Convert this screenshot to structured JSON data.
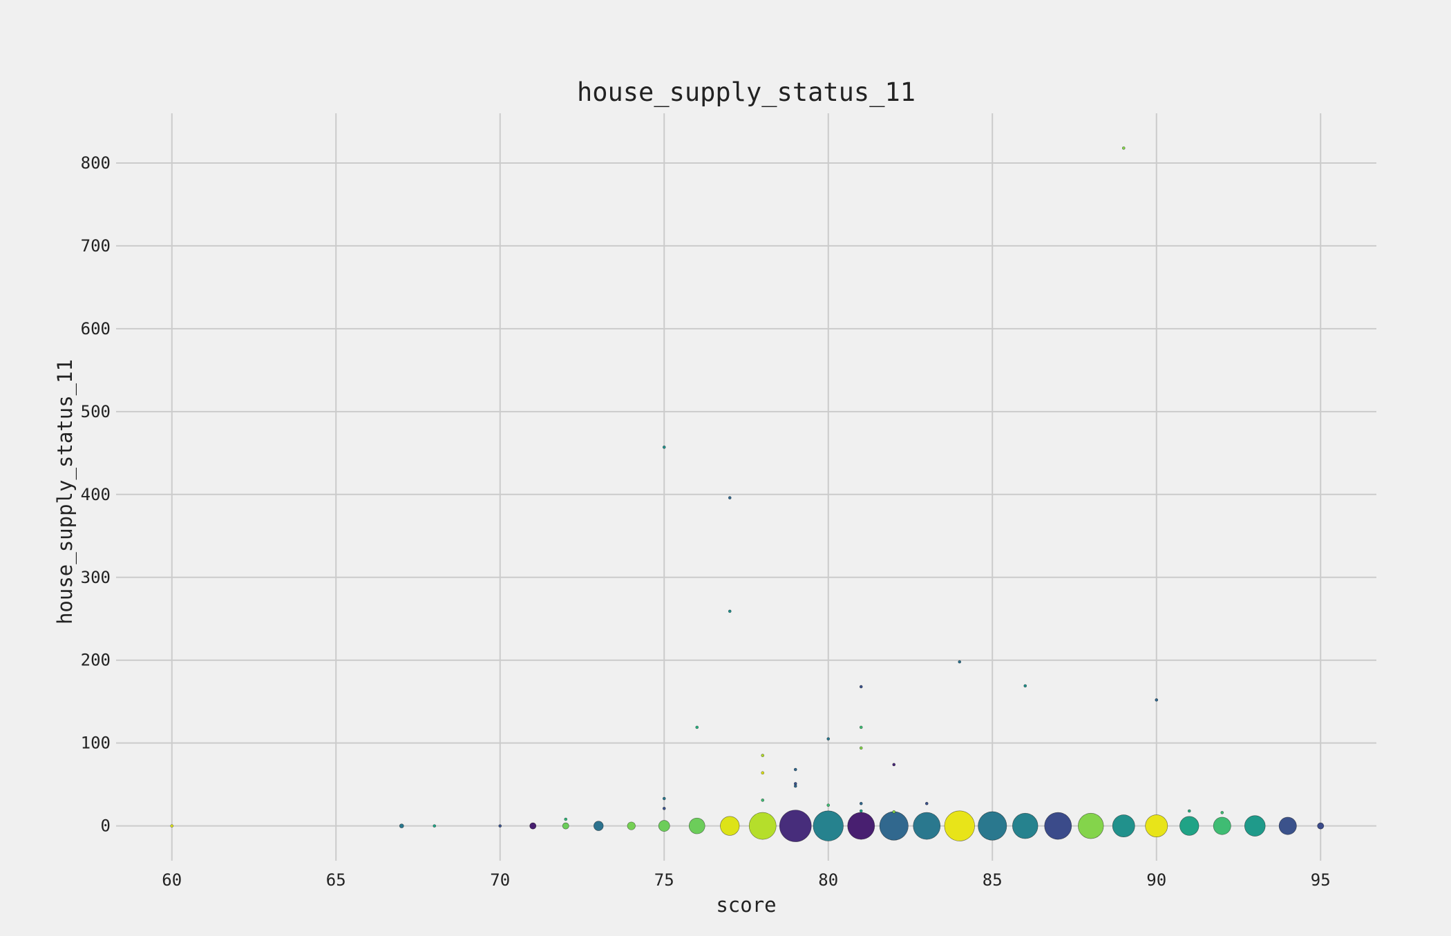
{
  "chart_data": {
    "type": "scatter",
    "title": "house_supply_status_11",
    "xlabel": "score",
    "ylabel": "house_supply_status_11",
    "xlim": [
      58.3,
      96.7
    ],
    "ylim": [
      -42,
      860
    ],
    "xticks": [
      60,
      65,
      70,
      75,
      80,
      85,
      90,
      95
    ],
    "yticks": [
      0,
      100,
      200,
      300,
      400,
      500,
      600,
      700,
      800
    ],
    "grid": true,
    "legend": "none",
    "background": "#f0f0f0",
    "grid_color": "#cbcbcb",
    "colormap": "viridis",
    "size_encoding": "marker area grows with the number of records at each score (zero-value rows)",
    "points": [
      {
        "x": 60,
        "y": 0,
        "size": 1,
        "color": "#dde318"
      },
      {
        "x": 67,
        "y": 0,
        "size": 2,
        "color": "#2a788e"
      },
      {
        "x": 68,
        "y": 0,
        "size": 1,
        "color": "#20a386"
      },
      {
        "x": 70,
        "y": 0,
        "size": 1,
        "color": "#3b528b"
      },
      {
        "x": 71,
        "y": 0,
        "size": 4,
        "color": "#481f70"
      },
      {
        "x": 72,
        "y": 8,
        "size": 1,
        "color": "#32b67a"
      },
      {
        "x": 72,
        "y": 0,
        "size": 4,
        "color": "#6ccd5a"
      },
      {
        "x": 73,
        "y": 0,
        "size": 6,
        "color": "#2c728e"
      },
      {
        "x": 74,
        "y": 0,
        "size": 5,
        "color": "#75d054"
      },
      {
        "x": 75,
        "y": 457,
        "size": 1,
        "color": "#21918c"
      },
      {
        "x": 75,
        "y": 33,
        "size": 1,
        "color": "#2a788e"
      },
      {
        "x": 75,
        "y": 21,
        "size": 1,
        "color": "#3b528b"
      },
      {
        "x": 75,
        "y": 0,
        "size": 7,
        "color": "#6ccd5a"
      },
      {
        "x": 76,
        "y": 119,
        "size": 1,
        "color": "#29af7f"
      },
      {
        "x": 76,
        "y": 0,
        "size": 10,
        "color": "#6ccd5a"
      },
      {
        "x": 77,
        "y": 396,
        "size": 1,
        "color": "#31688e"
      },
      {
        "x": 77,
        "y": 259,
        "size": 1,
        "color": "#21918c"
      },
      {
        "x": 77,
        "y": 0,
        "size": 12,
        "color": "#dde318"
      },
      {
        "x": 78,
        "y": 85,
        "size": 1,
        "color": "#b5de2b"
      },
      {
        "x": 78,
        "y": 64,
        "size": 1,
        "color": "#dde318"
      },
      {
        "x": 78,
        "y": 31,
        "size": 1,
        "color": "#3fbc73"
      },
      {
        "x": 78,
        "y": 0,
        "size": 17,
        "color": "#b5de2b"
      },
      {
        "x": 79,
        "y": 68,
        "size": 1,
        "color": "#31688e"
      },
      {
        "x": 79,
        "y": 51,
        "size": 1,
        "color": "#3b528b"
      },
      {
        "x": 79,
        "y": 48,
        "size": 1,
        "color": "#31688e"
      },
      {
        "x": 79,
        "y": 0,
        "size": 20,
        "color": "#472d7b"
      },
      {
        "x": 80,
        "y": 105,
        "size": 1,
        "color": "#2a788e"
      },
      {
        "x": 80,
        "y": 25,
        "size": 1,
        "color": "#3fbc73"
      },
      {
        "x": 80,
        "y": 0,
        "size": 19,
        "color": "#26828e"
      },
      {
        "x": 81,
        "y": 168,
        "size": 1,
        "color": "#3b528b"
      },
      {
        "x": 81,
        "y": 119,
        "size": 1,
        "color": "#3fbc73"
      },
      {
        "x": 81,
        "y": 94,
        "size": 1,
        "color": "#84d44b"
      },
      {
        "x": 81,
        "y": 27,
        "size": 1,
        "color": "#31688e"
      },
      {
        "x": 81,
        "y": 18,
        "size": 1,
        "color": "#20a386"
      },
      {
        "x": 81,
        "y": 0,
        "size": 17,
        "color": "#481f70"
      },
      {
        "x": 82,
        "y": 74,
        "size": 1,
        "color": "#482878"
      },
      {
        "x": 82,
        "y": 17,
        "size": 1,
        "color": "#84d44b"
      },
      {
        "x": 82,
        "y": 0,
        "size": 18,
        "color": "#31688e"
      },
      {
        "x": 83,
        "y": 27,
        "size": 1,
        "color": "#3b528b"
      },
      {
        "x": 83,
        "y": 0,
        "size": 17,
        "color": "#2a788e"
      },
      {
        "x": 84,
        "y": 198,
        "size": 1,
        "color": "#2c728e"
      },
      {
        "x": 84,
        "y": 0,
        "size": 19,
        "color": "#e8e419"
      },
      {
        "x": 85,
        "y": 0,
        "size": 18,
        "color": "#2a788e"
      },
      {
        "x": 86,
        "y": 169,
        "size": 1,
        "color": "#21918c"
      },
      {
        "x": 86,
        "y": 0,
        "size": 16,
        "color": "#26828e"
      },
      {
        "x": 87,
        "y": 0,
        "size": 17,
        "color": "#3b4b8a"
      },
      {
        "x": 88,
        "y": 0,
        "size": 16,
        "color": "#84d44b"
      },
      {
        "x": 89,
        "y": 818,
        "size": 1,
        "color": "#84d44b"
      },
      {
        "x": 89,
        "y": 0,
        "size": 14,
        "color": "#21918c"
      },
      {
        "x": 90,
        "y": 152,
        "size": 1,
        "color": "#31688e"
      },
      {
        "x": 90,
        "y": 0,
        "size": 14,
        "color": "#e8e419"
      },
      {
        "x": 91,
        "y": 18,
        "size": 1,
        "color": "#29af7f"
      },
      {
        "x": 91,
        "y": 0,
        "size": 12,
        "color": "#20a386"
      },
      {
        "x": 92,
        "y": 16,
        "size": 1,
        "color": "#3fbc73"
      },
      {
        "x": 92,
        "y": 0,
        "size": 11,
        "color": "#3fbc73"
      },
      {
        "x": 93,
        "y": 0,
        "size": 13,
        "color": "#1f9a8a"
      },
      {
        "x": 94,
        "y": 0,
        "size": 11,
        "color": "#3b528b"
      },
      {
        "x": 95,
        "y": 0,
        "size": 4,
        "color": "#3b4b8a"
      }
    ]
  }
}
